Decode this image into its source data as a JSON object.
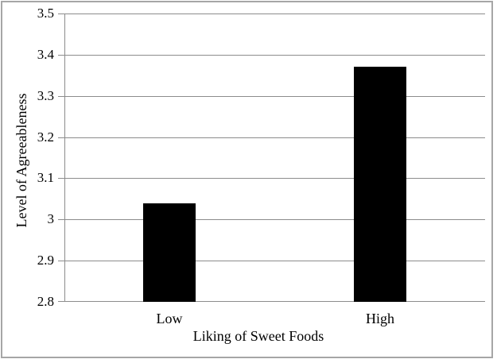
{
  "chart_data": {
    "type": "bar",
    "title": "",
    "categories": [
      "Low",
      "High"
    ],
    "values": [
      3.04,
      3.37
    ],
    "xlabel": "Liking of Sweet Foods",
    "ylabel": "Level of Agreeableness",
    "ylim": [
      2.8,
      3.5
    ],
    "ytick_step": 0.1,
    "ytick_labels_top_to_bottom": [
      "3.5",
      "3.4",
      "3.3",
      "3.2",
      "3.1",
      "3",
      "2.9",
      "2.8"
    ],
    "grid": true,
    "legend": false,
    "bar_color": "#000000",
    "gridline_color": "#8c8c8c",
    "axis_color": "#8c8c8c",
    "border_color": "#a6a6a6",
    "background_color": "#ffffff"
  }
}
